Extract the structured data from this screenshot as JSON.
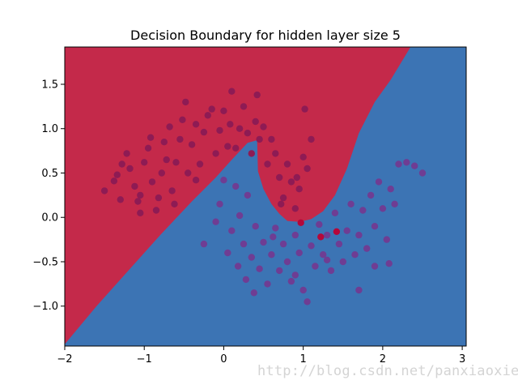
{
  "chart_data": {
    "type": "scatter",
    "title": "Decision Boundary for hidden layer size 5",
    "xlabel": "",
    "ylabel": "",
    "xlim": [
      -2.0,
      3.05
    ],
    "ylim": [
      -1.45,
      1.92
    ],
    "xticks": [
      -2,
      -1,
      0,
      1,
      2,
      3
    ],
    "xtick_labels": [
      "−2",
      "−1",
      "0",
      "1",
      "2",
      "3"
    ],
    "yticks": [
      -1.0,
      -0.5,
      0.0,
      0.5,
      1.0,
      1.5
    ],
    "ytick_labels": [
      "−1.0",
      "−0.5",
      "0.0",
      "0.5",
      "1.0",
      "1.5"
    ],
    "grid": false,
    "legend": "none",
    "decision_regions": {
      "class_0_color": "#c4294a",
      "class_1_color": "#3c74b4",
      "boundary": [
        [
          -2.0,
          -1.43
        ],
        [
          -1.6,
          -1.0
        ],
        [
          -1.2,
          -0.6
        ],
        [
          -0.8,
          -0.2
        ],
        [
          -0.4,
          0.18
        ],
        [
          -0.1,
          0.45
        ],
        [
          0.1,
          0.65
        ],
        [
          0.3,
          0.84
        ],
        [
          0.42,
          0.87
        ],
        [
          0.43,
          0.52
        ],
        [
          0.5,
          0.32
        ],
        [
          0.6,
          0.15
        ],
        [
          0.7,
          0.04
        ],
        [
          0.8,
          -0.04
        ],
        [
          0.95,
          -0.05
        ],
        [
          1.1,
          -0.02
        ],
        [
          1.25,
          0.07
        ],
        [
          1.4,
          0.25
        ],
        [
          1.55,
          0.55
        ],
        [
          1.7,
          0.95
        ],
        [
          1.9,
          1.3
        ],
        [
          2.1,
          1.55
        ],
        [
          2.35,
          1.92
        ]
      ]
    },
    "series": [
      {
        "color": "#8e1b54",
        "points": [
          [
            -1.5,
            0.3
          ],
          [
            -1.38,
            0.41
          ],
          [
            -1.34,
            0.48
          ],
          [
            -1.28,
            0.6
          ],
          [
            -1.22,
            0.72
          ],
          [
            -1.18,
            0.55
          ],
          [
            -1.12,
            0.35
          ],
          [
            -1.08,
            0.18
          ],
          [
            -1.05,
            0.25
          ],
          [
            -1.0,
            0.62
          ],
          [
            -0.95,
            0.78
          ],
          [
            -0.92,
            0.9
          ],
          [
            -0.9,
            0.4
          ],
          [
            -0.85,
            0.08
          ],
          [
            -0.82,
            0.22
          ],
          [
            -0.78,
            0.5
          ],
          [
            -0.72,
            0.65
          ],
          [
            -0.68,
            1.02
          ],
          [
            -0.65,
            0.3
          ],
          [
            -0.6,
            0.62
          ],
          [
            -0.55,
            0.88
          ],
          [
            -0.52,
            1.1
          ],
          [
            -0.48,
            1.3
          ],
          [
            -0.45,
            0.5
          ],
          [
            -0.4,
            0.82
          ],
          [
            -0.35,
            1.05
          ],
          [
            -0.3,
            0.6
          ],
          [
            -0.25,
            0.96
          ],
          [
            -0.2,
            1.15
          ],
          [
            -0.15,
            1.22
          ],
          [
            -0.1,
            0.72
          ],
          [
            -0.05,
            0.98
          ],
          [
            0.0,
            1.2
          ],
          [
            0.05,
            0.8
          ],
          [
            0.08,
            1.05
          ],
          [
            0.1,
            1.42
          ],
          [
            0.15,
            0.78
          ],
          [
            0.2,
            1.0
          ],
          [
            0.25,
            1.25
          ],
          [
            0.3,
            0.95
          ],
          [
            0.35,
            0.72
          ],
          [
            0.4,
            1.08
          ],
          [
            0.42,
            1.38
          ],
          [
            0.45,
            0.88
          ],
          [
            0.5,
            1.02
          ],
          [
            0.55,
            0.6
          ],
          [
            0.6,
            0.88
          ],
          [
            0.65,
            0.72
          ],
          [
            0.7,
            0.45
          ],
          [
            0.75,
            0.22
          ],
          [
            0.8,
            0.6
          ],
          [
            0.85,
            0.4
          ],
          [
            0.9,
            0.1
          ],
          [
            0.95,
            0.32
          ],
          [
            1.0,
            0.68
          ],
          [
            1.02,
            1.22
          ],
          [
            1.05,
            0.55
          ],
          [
            1.1,
            0.88
          ],
          [
            -1.3,
            0.2
          ],
          [
            -1.05,
            0.05
          ],
          [
            -0.35,
            0.42
          ],
          [
            -0.75,
            0.85
          ],
          [
            0.72,
            0.15
          ],
          [
            0.92,
            0.45
          ],
          [
            -0.62,
            0.15
          ]
        ]
      },
      {
        "color": "#6f3d93",
        "points": [
          [
            -0.25,
            -0.3
          ],
          [
            -0.1,
            -0.05
          ],
          [
            -0.05,
            0.15
          ],
          [
            0.0,
            0.42
          ],
          [
            0.05,
            -0.4
          ],
          [
            0.1,
            -0.15
          ],
          [
            0.15,
            0.35
          ],
          [
            0.18,
            -0.55
          ],
          [
            0.2,
            0.02
          ],
          [
            0.25,
            -0.3
          ],
          [
            0.28,
            -0.7
          ],
          [
            0.3,
            0.25
          ],
          [
            0.35,
            -0.45
          ],
          [
            0.38,
            -0.85
          ],
          [
            0.4,
            -0.1
          ],
          [
            0.45,
            -0.58
          ],
          [
            0.5,
            -0.28
          ],
          [
            0.55,
            -0.75
          ],
          [
            0.6,
            -0.42
          ],
          [
            0.65,
            -0.12
          ],
          [
            0.7,
            -0.6
          ],
          [
            0.75,
            -0.3
          ],
          [
            0.8,
            -0.5
          ],
          [
            0.85,
            -0.72
          ],
          [
            0.9,
            -0.2
          ],
          [
            0.95,
            -0.4
          ],
          [
            1.0,
            -0.82
          ],
          [
            1.05,
            -0.95
          ],
          [
            1.1,
            -0.32
          ],
          [
            1.15,
            -0.55
          ],
          [
            1.2,
            -0.08
          ],
          [
            1.25,
            -0.42
          ],
          [
            1.3,
            -0.2
          ],
          [
            1.35,
            -0.6
          ],
          [
            1.4,
            0.05
          ],
          [
            1.45,
            -0.3
          ],
          [
            1.5,
            -0.5
          ],
          [
            1.55,
            -0.15
          ],
          [
            1.6,
            0.15
          ],
          [
            1.65,
            -0.42
          ],
          [
            1.7,
            -0.2
          ],
          [
            1.75,
            0.08
          ],
          [
            1.8,
            -0.35
          ],
          [
            1.85,
            0.25
          ],
          [
            1.9,
            -0.1
          ],
          [
            1.95,
            0.4
          ],
          [
            2.0,
            0.1
          ],
          [
            2.05,
            -0.25
          ],
          [
            2.1,
            0.32
          ],
          [
            2.15,
            0.15
          ],
          [
            2.2,
            0.6
          ],
          [
            2.3,
            0.62
          ],
          [
            2.4,
            0.58
          ],
          [
            2.5,
            0.5
          ],
          [
            1.7,
            -0.82
          ],
          [
            1.9,
            -0.55
          ],
          [
            2.08,
            -0.52
          ],
          [
            1.3,
            -0.48
          ],
          [
            0.62,
            -0.22
          ],
          [
            0.9,
            -0.65
          ]
        ]
      },
      {
        "color": "#b5073a",
        "points": [
          [
            0.97,
            -0.06
          ],
          [
            1.22,
            -0.22
          ],
          [
            1.42,
            -0.16
          ]
        ]
      }
    ]
  },
  "watermark": "http://blog.csdn.net/panxiaoxie"
}
